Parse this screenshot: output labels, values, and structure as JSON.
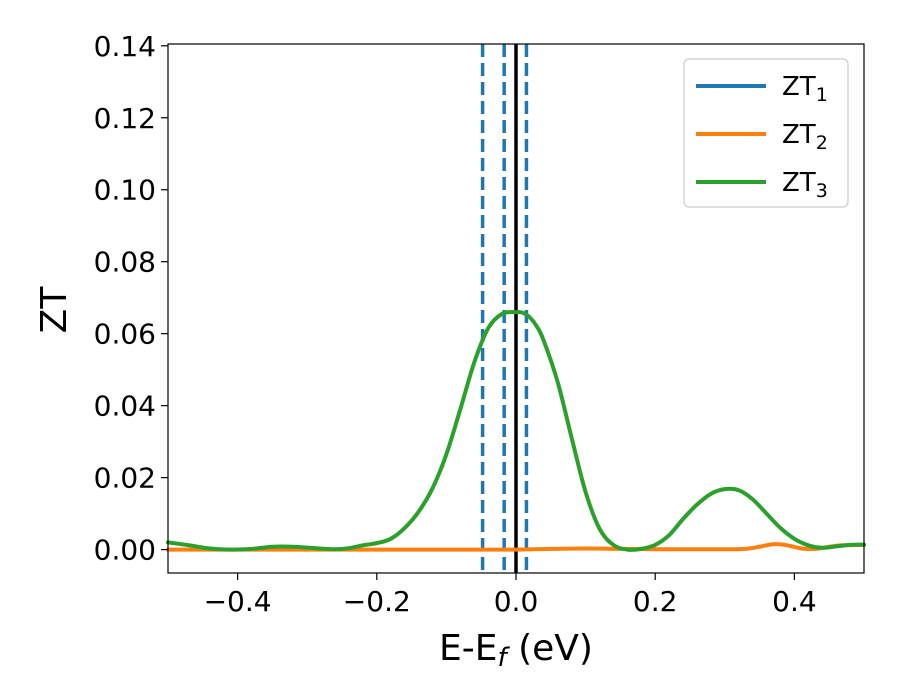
{
  "chart_data": {
    "type": "line",
    "xlabel": "E-E",
    "xlabel_sub": "f",
    "xlabel_unit": " (eV)",
    "ylabel": "ZT",
    "xlim": [
      -0.5,
      0.5
    ],
    "ylim": [
      -0.0065,
      0.1405
    ],
    "xticks": [
      -0.4,
      -0.2,
      0.0,
      0.2,
      0.4
    ],
    "xtick_labels": [
      "−0.4",
      "−0.2",
      "0.0",
      "0.2",
      "0.4"
    ],
    "yticks": [
      0.0,
      0.02,
      0.04,
      0.06,
      0.08,
      0.1,
      0.12,
      0.14
    ],
    "ytick_labels": [
      "0.00",
      "0.02",
      "0.04",
      "0.06",
      "0.08",
      "0.10",
      "0.12",
      "0.14"
    ],
    "grid": false,
    "legend_position": "top-right",
    "series": [
      {
        "name": "ZT",
        "name_sub": "1",
        "color": "#1f77b4",
        "x": [],
        "y": []
      },
      {
        "name": "ZT",
        "name_sub": "2",
        "color": "#ff7f0e",
        "x": [
          -0.5,
          -0.4,
          -0.3,
          -0.2,
          -0.1,
          0.0,
          0.05,
          0.1,
          0.15,
          0.2,
          0.25,
          0.3,
          0.33,
          0.35,
          0.37,
          0.39,
          0.41,
          0.43,
          0.45,
          0.47,
          0.5
        ],
        "y": [
          0.0,
          0.0,
          0.0,
          0.0,
          0.0,
          0.0,
          0.0002,
          0.0003,
          0.0002,
          0.0001,
          0.0001,
          0.0001,
          0.0002,
          0.0008,
          0.0015,
          0.0012,
          0.0003,
          0.0002,
          0.0008,
          0.0012,
          0.0013
        ]
      },
      {
        "name": "ZT",
        "name_sub": "3",
        "color": "#2ca02c",
        "x": [
          -0.5,
          -0.47,
          -0.44,
          -0.41,
          -0.38,
          -0.35,
          -0.32,
          -0.29,
          -0.26,
          -0.24,
          -0.22,
          -0.2,
          -0.18,
          -0.16,
          -0.14,
          -0.12,
          -0.1,
          -0.08,
          -0.06,
          -0.04,
          -0.02,
          0.0,
          0.01,
          0.02,
          0.03,
          0.04,
          0.06,
          0.08,
          0.1,
          0.12,
          0.14,
          0.16,
          0.18,
          0.2,
          0.22,
          0.24,
          0.26,
          0.28,
          0.3,
          0.32,
          0.34,
          0.36,
          0.38,
          0.4,
          0.42,
          0.44,
          0.46,
          0.48,
          0.5
        ],
        "y": [
          0.002,
          0.0012,
          0.0003,
          0.0,
          0.0002,
          0.0008,
          0.0008,
          0.0004,
          0.0001,
          0.0004,
          0.0012,
          0.0018,
          0.003,
          0.006,
          0.0105,
          0.017,
          0.0265,
          0.039,
          0.052,
          0.0615,
          0.0655,
          0.066,
          0.0658,
          0.0645,
          0.062,
          0.058,
          0.0465,
          0.031,
          0.016,
          0.0058,
          0.0013,
          0.0,
          0.0002,
          0.0013,
          0.004,
          0.0085,
          0.0125,
          0.0155,
          0.0168,
          0.0165,
          0.014,
          0.01,
          0.006,
          0.003,
          0.0012,
          0.0005,
          0.0009,
          0.0013,
          0.0014
        ]
      }
    ],
    "vertical_lines": [
      {
        "x": -0.048,
        "style": "dashed",
        "color": "#1f77b4"
      },
      {
        "x": -0.017,
        "style": "dashed",
        "color": "#1f77b4"
      },
      {
        "x": 0.0,
        "style": "solid",
        "color": "#000000"
      },
      {
        "x": 0.015,
        "style": "dashed",
        "color": "#1f77b4"
      }
    ]
  }
}
